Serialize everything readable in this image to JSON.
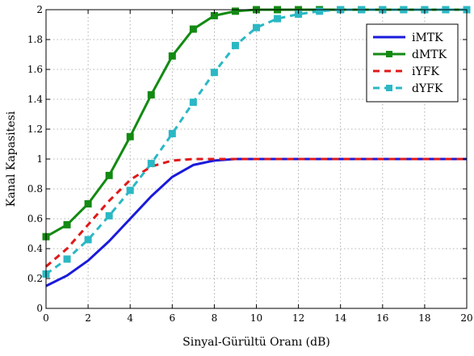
{
  "chart_data": {
    "type": "line",
    "xlabel": "Sinyal-Gürültü Oranı (dB)",
    "ylabel": "Kanal Kapasitesi",
    "xlim": [
      0,
      20
    ],
    "ylim": [
      0,
      2
    ],
    "xticks": [
      0,
      2,
      4,
      6,
      8,
      10,
      12,
      14,
      16,
      18,
      20
    ],
    "yticks": [
      0,
      0.2,
      0.4,
      0.6,
      0.8,
      1,
      1.2,
      1.4,
      1.6,
      1.8,
      2
    ],
    "grid": true,
    "legend_position": "top-right",
    "x": [
      0,
      1,
      2,
      3,
      4,
      5,
      6,
      7,
      8,
      9,
      10,
      11,
      12,
      13,
      14,
      15,
      16,
      17,
      18,
      19,
      20
    ],
    "series": [
      {
        "name": "iMTK",
        "color": "#1a1adb",
        "line": "solid",
        "marker": "none",
        "values": [
          0.15,
          0.22,
          0.32,
          0.45,
          0.6,
          0.75,
          0.88,
          0.96,
          0.99,
          1.0,
          1.0,
          1.0,
          1.0,
          1.0,
          1.0,
          1.0,
          1.0,
          1.0,
          1.0,
          1.0,
          1.0
        ]
      },
      {
        "name": "dMTK",
        "color": "#138a13",
        "line": "solid",
        "marker": "square",
        "values": [
          0.48,
          0.56,
          0.7,
          0.89,
          1.15,
          1.43,
          1.69,
          1.87,
          1.96,
          1.99,
          2.0,
          2.0,
          2.0,
          2.0,
          2.0,
          2.0,
          2.0,
          2.0,
          2.0,
          2.0,
          2.0
        ]
      },
      {
        "name": "iYFK",
        "color": "#e01818",
        "line": "dashed",
        "marker": "none",
        "values": [
          0.28,
          0.4,
          0.56,
          0.72,
          0.86,
          0.95,
          0.99,
          1.0,
          1.0,
          1.0,
          1.0,
          1.0,
          1.0,
          1.0,
          1.0,
          1.0,
          1.0,
          1.0,
          1.0,
          1.0,
          1.0
        ]
      },
      {
        "name": "dYFK",
        "color": "#2ab8c4",
        "line": "dashed",
        "marker": "square",
        "values": [
          0.23,
          0.33,
          0.46,
          0.62,
          0.79,
          0.97,
          1.17,
          1.38,
          1.58,
          1.76,
          1.88,
          1.94,
          1.97,
          1.99,
          2.0,
          2.0,
          2.0,
          2.0,
          2.0,
          2.0,
          2.0
        ]
      }
    ]
  }
}
